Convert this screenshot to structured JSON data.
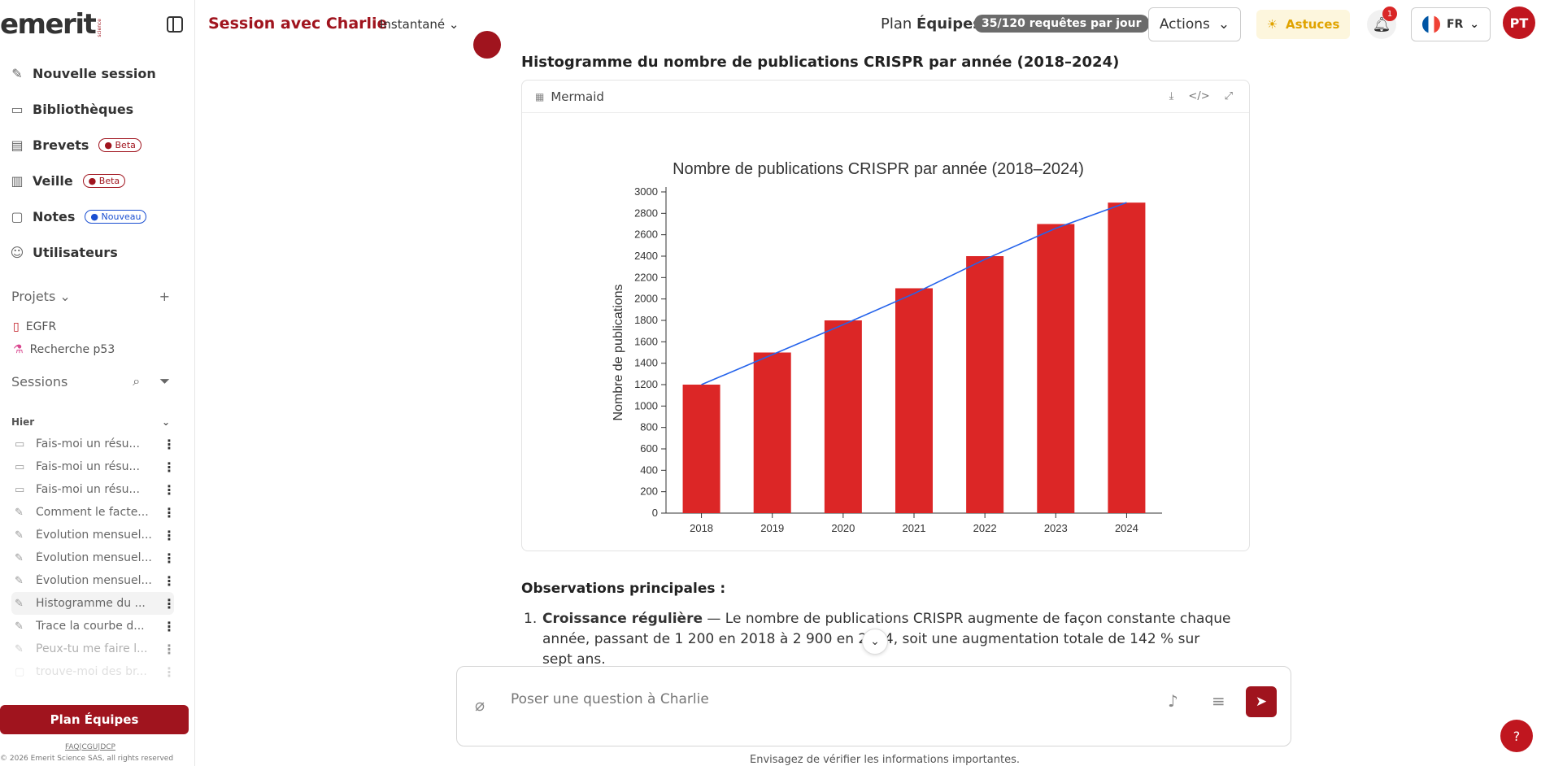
{
  "brand": {
    "name": "emerit",
    "sub": "science"
  },
  "sidebar": {
    "nav": [
      {
        "label": "Nouvelle session",
        "icon": "pin-icon"
      },
      {
        "label": "Bibliothèques",
        "icon": "folder-icon"
      },
      {
        "label": "Brevets",
        "icon": "certificate-icon",
        "badge": "Beta"
      },
      {
        "label": "Veille",
        "icon": "watch-doc-icon",
        "badge": "Beta"
      },
      {
        "label": "Notes",
        "icon": "note-icon",
        "badge": "Nouveau"
      },
      {
        "label": "Utilisateurs",
        "icon": "users-icon"
      }
    ],
    "projects_label": "Projets",
    "projects": [
      {
        "label": "EGFR"
      },
      {
        "label": "Recherche p53"
      }
    ],
    "sessions_label": "Sessions",
    "day_label": "Hier",
    "sessions": [
      {
        "label": "Fais-moi un résu..."
      },
      {
        "label": "Fais-moi un résu..."
      },
      {
        "label": "Fais-moi un résu..."
      },
      {
        "label": "Comment le facte..."
      },
      {
        "label": "Évolution mensuel..."
      },
      {
        "label": "Évolution mensuel..."
      },
      {
        "label": "Évolution mensuel..."
      },
      {
        "label": "Histogramme du ..."
      },
      {
        "label": "Trace la courbe d..."
      },
      {
        "label": "Peux-tu me faire l..."
      },
      {
        "label": "trouve-moi des br..."
      }
    ],
    "plan_button": "Plan Équipes",
    "footer_links": "FAQ|CGU|DCP",
    "copyright": "© 2026 Emerit Science SAS, all rights reserved"
  },
  "header": {
    "title": "Session avec Charlie",
    "mode": "Instantané",
    "plan_prefix": "Plan",
    "plan_name": "Équipes",
    "quota": "35/120 requêtes par jour",
    "actions": "Actions",
    "tips": "Astuces",
    "notifications": "1",
    "lang": "FR",
    "avatar": "PT"
  },
  "message": {
    "heading": "Histogramme du nombre de publications CRISPR par année (2018–2024)",
    "block_label": "Mermaid",
    "observations_title": "Observations principales :",
    "item_number": "1.",
    "item_bold": "Croissance régulière",
    "item_text": " — Le nombre de publications CRISPR augmente de façon constante chaque année, passant de 1 200 en 2018 à 2 900 en 2024, soit une augmentation totale de 142 % sur sept ans."
  },
  "chart_data": {
    "type": "bar",
    "title": "Nombre de publications CRISPR par année (2018–2024)",
    "xlabel": "",
    "ylabel": "Nombre de publications",
    "categories": [
      "2018",
      "2019",
      "2020",
      "2021",
      "2022",
      "2023",
      "2024"
    ],
    "values": [
      1200,
      1500,
      1800,
      2100,
      2400,
      2700,
      2900
    ],
    "line_values": [
      1200,
      1480,
      1760,
      2050,
      2370,
      2660,
      2900
    ],
    "yticks": [
      0,
      200,
      400,
      600,
      800,
      1000,
      1200,
      1400,
      1600,
      1800,
      2000,
      2200,
      2400,
      2600,
      2800,
      3000
    ],
    "ylim": [
      0,
      3000
    ],
    "bar_color": "#dc2626",
    "line_color": "#2563eb"
  },
  "composer": {
    "placeholder": "Poser une question à Charlie"
  },
  "disclaimer": "Envisagez de vérifier les informations importantes.",
  "colors": {
    "brand": "#a0141e",
    "accent_red": "#c0161f"
  }
}
